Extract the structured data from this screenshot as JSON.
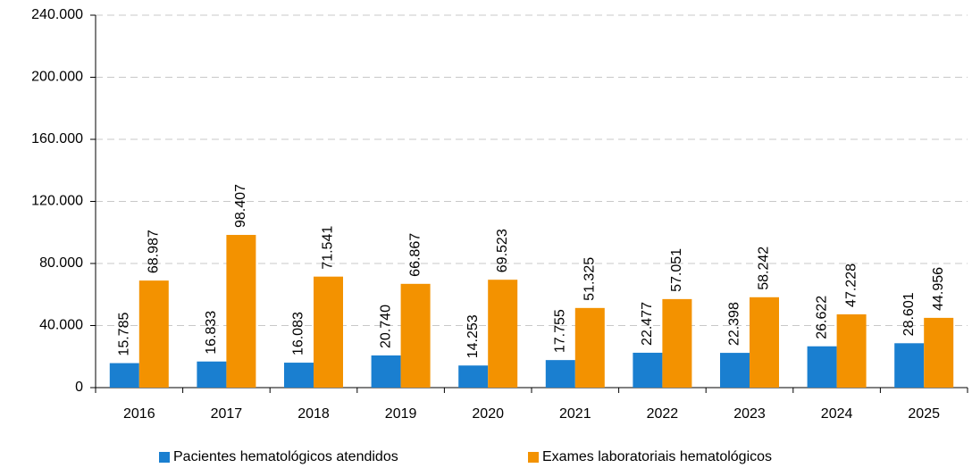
{
  "chart_data": {
    "type": "bar",
    "categories": [
      "2016",
      "2017",
      "2018",
      "2019",
      "2020",
      "2021",
      "2022",
      "2023",
      "2024",
      "2025"
    ],
    "series": [
      {
        "name": "Pacientes hematológicos atendidos",
        "color": "#1a7fd0",
        "values": [
          15785,
          16833,
          16083,
          20740,
          14253,
          17755,
          22477,
          22398,
          26622,
          28601
        ],
        "value_labels": [
          "15.785",
          "16.833",
          "16.083",
          "20.740",
          "14.253",
          "17.755",
          "22.477",
          "22.398",
          "26.622",
          "28.601"
        ]
      },
      {
        "name": "Exames laboratoriais hematológicos",
        "color": "#f39200",
        "values": [
          68987,
          98407,
          71541,
          66867,
          69523,
          51325,
          57051,
          58242,
          47228,
          44956
        ],
        "value_labels": [
          "68.987",
          "98.407",
          "71.541",
          "66.867",
          "69.523",
          "51.325",
          "57.051",
          "58.242",
          "47.228",
          "44.956"
        ]
      }
    ],
    "ylim": [
      0,
      240000
    ],
    "yticks": [
      0,
      {
        "value": 40000,
        "label": "40.000"
      },
      {
        "value": 80000,
        "label": "80.000"
      },
      {
        "value": 120000,
        "label": "120.000"
      },
      {
        "value": 160000,
        "label": "160.000"
      },
      {
        "value": 200000,
        "label": "200.000"
      },
      {
        "value": 240000,
        "label": "240.000"
      }
    ],
    "grid": true,
    "legend": "bottom"
  }
}
